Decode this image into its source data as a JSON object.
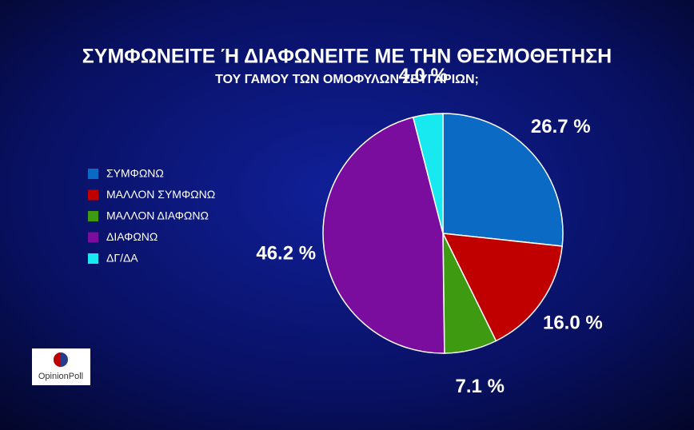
{
  "chart_data": {
    "type": "pie",
    "title": "ΣΥΜΦΩΝΕΙΤΕ Ή ΔΙΑΦΩΝΕΙΤΕ ΜΕ ΤΗΝ ΘΕΣΜΟΘΕΤΗΣΗ",
    "subtitle": "ΤΟΥ ΓΑΜΟΥ ΤΩΝ ΟΜΟΦΥΛΩΝ ΖΕΥΓΑΡΙΩΝ;",
    "categories": [
      "ΣΥΜΦΩΝΩ",
      "ΜΑΛΛΟΝ ΣΥΜΦΩΝΩ",
      "ΜΑΛΛΟΝ ΔΙΑΦΩΝΩ",
      "ΔΙΑΦΩΝΩ",
      "ΔΓ/ΔΑ"
    ],
    "values": [
      26.7,
      16.0,
      7.1,
      46.2,
      4.0
    ],
    "value_labels": [
      "26.7 %",
      "16.0 %",
      "7.1 %",
      "46.2 %",
      "4.0 %"
    ],
    "colors": [
      "#0a6ac4",
      "#c00000",
      "#3e9a10",
      "#7a0c9e",
      "#18e8f0"
    ],
    "legend": "left",
    "source": "OpinionPoll"
  }
}
